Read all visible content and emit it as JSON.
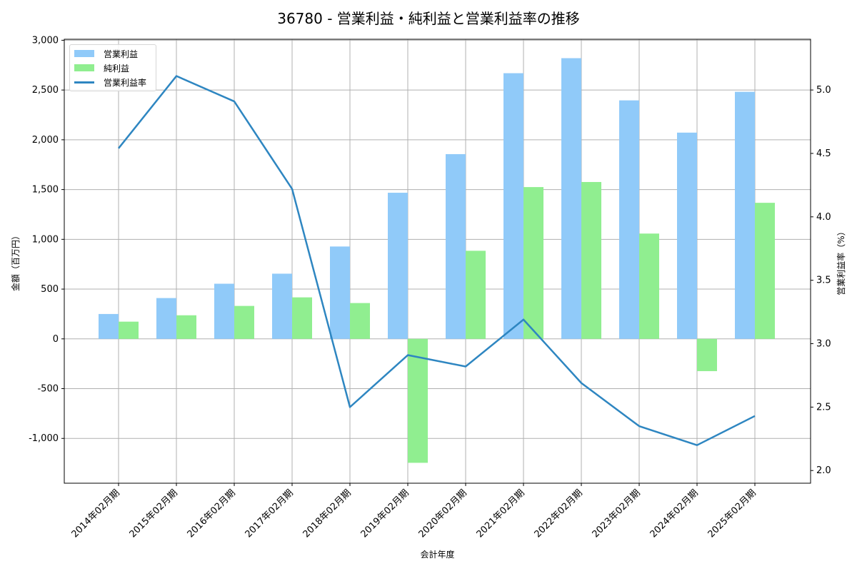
{
  "chart_data": {
    "type": "bar+line",
    "title": "36780 - 営業利益・純利益と営業利益率の推移",
    "xlabel": "会計年度",
    "ylabel": "金額（百万円）",
    "y2label": "営業利益率（%）",
    "categories": [
      "2014年02月期",
      "2015年02月期",
      "2016年02月期",
      "2017年02月期",
      "2018年02月期",
      "2019年02月期",
      "2020年02月期",
      "2021年02月期",
      "2022年02月期",
      "2023年02月期",
      "2024年02月期",
      "2025年02月期"
    ],
    "series": [
      {
        "name": "営業利益",
        "type": "bar",
        "axis": "left",
        "color": "#90CAF9",
        "values": [
          250,
          410,
          554,
          655,
          928,
          1468,
          1856,
          2669,
          2820,
          2396,
          2072,
          2482
        ]
      },
      {
        "name": "純利益",
        "type": "bar",
        "axis": "left",
        "color": "#90EE90",
        "values": [
          173,
          237,
          331,
          417,
          360,
          -1245,
          885,
          1525,
          1576,
          1058,
          -324,
          1367
        ]
      },
      {
        "name": "営業利益率",
        "type": "line",
        "axis": "right",
        "color": "#2E86C1",
        "values": [
          4.54,
          5.11,
          4.91,
          4.22,
          2.5,
          2.91,
          2.82,
          3.19,
          2.69,
          2.35,
          2.2,
          2.43
        ]
      }
    ],
    "ylim": [
      -1450,
      3010
    ],
    "y2lim": [
      1.9,
      5.4
    ],
    "yticks": [
      -1000,
      -500,
      0,
      500,
      1000,
      1500,
      2000,
      2500,
      3000
    ],
    "ytick_labels": [
      "-1,000",
      "-500",
      "0",
      "500",
      "1,000",
      "1,500",
      "2,000",
      "2,500",
      "3,000"
    ],
    "y2ticks": [
      2.0,
      2.5,
      3.0,
      3.5,
      4.0,
      4.5,
      5.0
    ],
    "y2tick_labels": [
      "2.0",
      "2.5",
      "3.0",
      "3.5",
      "4.0",
      "4.5",
      "5.0"
    ],
    "grid": true,
    "legend_position": "upper left"
  }
}
